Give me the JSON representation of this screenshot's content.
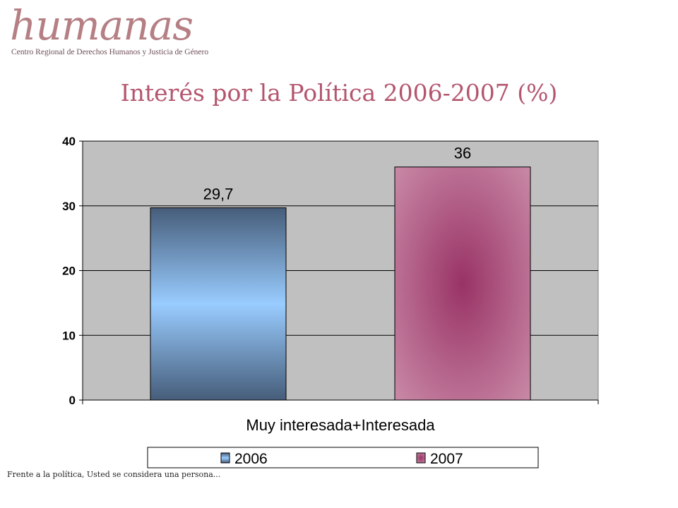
{
  "logo": {
    "name": "humanas",
    "subtitle": "Centro Regional de Derechos Humanos y Justicia de Género"
  },
  "footnote": "Frente a la política, Usted se considera una persona...",
  "colors": {
    "title": "#b3566e",
    "plot_bg": "#c0c0c0",
    "series_2006_edge": "#465d7a",
    "series_2006_center": "#99ccff",
    "series_2007_edge": "#c989a6",
    "series_2007_center": "#993366"
  },
  "chart_data": {
    "type": "bar",
    "title": "Interés por la Política 2006-2007 (%)",
    "categories": [
      "Muy interesada+Interesada"
    ],
    "xlabel": "Muy interesada+Interesada",
    "ylabel": "",
    "ylim": [
      0,
      40
    ],
    "yticks": [
      "0",
      "10",
      "20",
      "30",
      "40"
    ],
    "grid": true,
    "legend_position": "bottom",
    "series": [
      {
        "name": "2006",
        "values": [
          29.7
        ],
        "label": "29,7"
      },
      {
        "name": "2007",
        "values": [
          36
        ],
        "label": "36"
      }
    ]
  }
}
